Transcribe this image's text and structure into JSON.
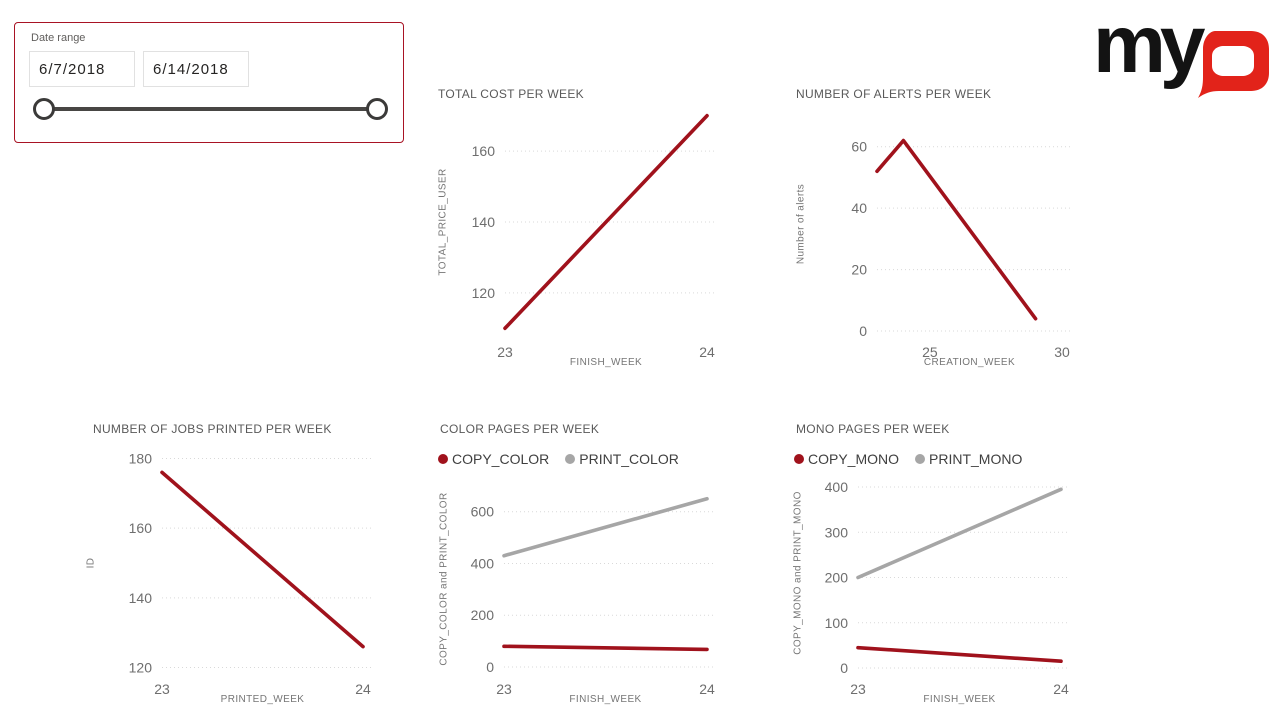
{
  "slicer": {
    "label": "Date range",
    "start_date": "6/7/2018",
    "end_date": "6/14/2018"
  },
  "logo": {
    "black_text": "my",
    "red_letter": "Q"
  },
  "colors": {
    "series_red": "#a0121c",
    "series_gray": "#a6a6a6",
    "slicer_border": "#a81324",
    "logo_red": "#e2231a",
    "logo_black": "#131313",
    "title_text": "#595959",
    "tick_text": "#6e6e6e",
    "axis_label_text": "#757575",
    "legend_text": "#3f3f3f",
    "gridline": "#d9d9d9",
    "slider": "#484644"
  },
  "chart_data": [
    {
      "type": "line",
      "title": "TOTAL COST PER WEEK",
      "xlabel": "FINISH_WEEK",
      "ylabel": "TOTAL_PRICE_USER",
      "xlim": [
        23,
        24
      ],
      "ylim": [
        105,
        175
      ],
      "xticks": [
        23,
        24
      ],
      "yticks": [
        120,
        140,
        160
      ],
      "grid": "horizontal-dotted",
      "legend": null,
      "series": [
        {
          "name": "TOTAL_PRICE_USER",
          "color": "#a0121c",
          "points": [
            [
              23,
              110
            ],
            [
              24,
              170
            ]
          ]
        }
      ]
    },
    {
      "type": "line",
      "title": "NUMBER OF ALERTS PER WEEK",
      "xlabel": "CREATION_WEEK",
      "ylabel": "Number of alerts",
      "xlim": [
        23,
        30
      ],
      "ylim": [
        0,
        70
      ],
      "xticks": [
        25,
        30
      ],
      "yticks": [
        0,
        20,
        40,
        60
      ],
      "grid": "horizontal-dotted",
      "legend": null,
      "series": [
        {
          "name": "Number of alerts",
          "color": "#a0121c",
          "points": [
            [
              23,
              52
            ],
            [
              24,
              62
            ],
            [
              29,
              4
            ]
          ]
        }
      ]
    },
    {
      "type": "line",
      "title": "NUMBER OF JOBS PRINTED PER WEEK",
      "xlabel": "PRINTED_WEEK",
      "ylabel": "ID",
      "xlim": [
        23,
        24
      ],
      "ylim": [
        117,
        183
      ],
      "xticks": [
        23,
        24
      ],
      "yticks": [
        120,
        140,
        160,
        180
      ],
      "grid": "horizontal-dotted",
      "legend": null,
      "series": [
        {
          "name": "ID",
          "color": "#a0121c",
          "points": [
            [
              23,
              176
            ],
            [
              24,
              126
            ]
          ]
        }
      ]
    },
    {
      "type": "line",
      "title": "COLOR PAGES PER WEEK",
      "xlabel": "FINISH_WEEK",
      "ylabel": "COPY_COLOR and PRINT_COLOR",
      "xlim": [
        23,
        24
      ],
      "ylim": [
        0,
        680
      ],
      "xticks": [
        23,
        24
      ],
      "yticks": [
        0,
        200,
        400,
        600
      ],
      "grid": "horizontal-dotted",
      "legend": [
        "COPY_COLOR",
        "PRINT_COLOR"
      ],
      "series": [
        {
          "name": "COPY_COLOR",
          "color": "#a0121c",
          "points": [
            [
              23,
              80
            ],
            [
              24,
              68
            ]
          ]
        },
        {
          "name": "PRINT_COLOR",
          "color": "#a6a6a6",
          "points": [
            [
              23,
              430
            ],
            [
              24,
              650
            ]
          ]
        }
      ]
    },
    {
      "type": "line",
      "title": "MONO PAGES PER WEEK",
      "xlabel": "FINISH_WEEK",
      "ylabel": "COPY_MONO and PRINT_MONO",
      "xlim": [
        23,
        24
      ],
      "ylim": [
        0,
        420
      ],
      "xticks": [
        23,
        24
      ],
      "yticks": [
        0,
        100,
        200,
        300,
        400
      ],
      "grid": "horizontal-dotted",
      "legend": [
        "COPY_MONO",
        "PRINT_MONO"
      ],
      "series": [
        {
          "name": "COPY_MONO",
          "color": "#a0121c",
          "points": [
            [
              23,
              45
            ],
            [
              24,
              15
            ]
          ]
        },
        {
          "name": "PRINT_MONO",
          "color": "#a6a6a6",
          "points": [
            [
              23,
              200
            ],
            [
              24,
              395
            ]
          ]
        }
      ]
    }
  ]
}
